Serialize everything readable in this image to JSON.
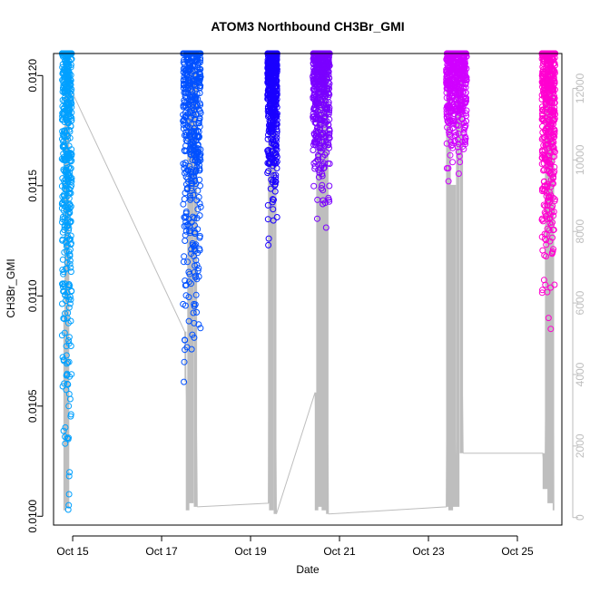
{
  "chart_data": {
    "type": "scatter",
    "title": "ATOM3 Northbound CH3Br_GMI",
    "xlabel": "Date",
    "ylabel": "CH3Br_GMI",
    "y_right_label": "",
    "xlim": [
      14.57,
      26.0
    ],
    "ylim": [
      0.00996,
      0.0121
    ],
    "y2lim": [
      -210,
      12975
    ],
    "x_ticks": [
      {
        "value": 15,
        "label": "Oct 15"
      },
      {
        "value": 17,
        "label": "Oct 17"
      },
      {
        "value": 19,
        "label": "Oct 19"
      },
      {
        "value": 21,
        "label": "Oct 21"
      },
      {
        "value": 23,
        "label": "Oct 23"
      },
      {
        "value": 25,
        "label": "Oct 25"
      }
    ],
    "y_ticks": [
      {
        "value": 0.01,
        "label": "0.0100"
      },
      {
        "value": 0.0105,
        "label": "0.0105"
      },
      {
        "value": 0.011,
        "label": "0.0110"
      },
      {
        "value": 0.0115,
        "label": "0.0115"
      },
      {
        "value": 0.012,
        "label": "0.0120"
      }
    ],
    "y2_ticks": [
      {
        "value": 0,
        "label": "0"
      },
      {
        "value": 2000,
        "label": "2000"
      },
      {
        "value": 4000,
        "label": "4000"
      },
      {
        "value": 6000,
        "label": "6000"
      },
      {
        "value": 8000,
        "label": "8000"
      },
      {
        "value": 10000,
        "label": "10000"
      },
      {
        "value": 12000,
        "label": "12000"
      }
    ],
    "altitude_line": {
      "axis": "right",
      "color": "#bebebe",
      "points": [
        [
          14.8,
          5800
        ],
        [
          14.82,
          200
        ],
        [
          14.85,
          12600
        ],
        [
          14.88,
          300
        ],
        [
          14.92,
          12400
        ],
        [
          14.95,
          12000
        ],
        [
          17.52,
          5200
        ],
        [
          17.55,
          3800
        ],
        [
          17.58,
          200
        ],
        [
          17.62,
          12600
        ],
        [
          17.65,
          400
        ],
        [
          17.72,
          12500
        ],
        [
          17.8,
          300
        ],
        [
          19.4,
          400
        ],
        [
          19.42,
          12400
        ],
        [
          19.45,
          200
        ],
        [
          19.52,
          12300
        ],
        [
          19.58,
          100
        ],
        [
          20.45,
          3500
        ],
        [
          20.48,
          200
        ],
        [
          20.52,
          12600
        ],
        [
          20.55,
          300
        ],
        [
          20.6,
          12500
        ],
        [
          20.65,
          200
        ],
        [
          20.7,
          12600
        ],
        [
          20.75,
          100
        ],
        [
          23.4,
          300
        ],
        [
          23.45,
          12600
        ],
        [
          23.5,
          200
        ],
        [
          23.55,
          9300
        ],
        [
          23.62,
          300
        ],
        [
          23.7,
          12600
        ],
        [
          23.78,
          1800
        ],
        [
          25.57,
          1800
        ],
        [
          25.62,
          800
        ],
        [
          25.68,
          12600
        ],
        [
          25.72,
          400
        ],
        [
          25.8,
          12600
        ],
        [
          25.82,
          200
        ]
      ]
    },
    "series": [
      {
        "color": "#00a0ff",
        "x_range": [
          14.76,
          14.98
        ],
        "y_range": [
          0.01002,
          0.0121
        ],
        "tail": [
          [
            14.9,
            0.01003
          ],
          [
            14.91,
            0.01005
          ],
          [
            14.92,
            0.0101
          ],
          [
            14.93,
            0.0102
          ],
          [
            14.9,
            0.01035
          ],
          [
            14.91,
            0.0105
          ],
          [
            14.92,
            0.0107
          ]
        ]
      },
      {
        "color": "#0050ff",
        "x_range": [
          17.48,
          17.88
        ],
        "y_range": [
          0.0106,
          0.0121
        ],
        "tail": [
          [
            17.5,
            0.01061
          ],
          [
            17.51,
            0.0107
          ],
          [
            17.52,
            0.0108
          ]
        ]
      },
      {
        "color": "#1a00ff",
        "x_range": [
          19.38,
          19.6
        ],
        "y_range": [
          0.01123,
          0.0121
        ],
        "tail": [
          [
            19.4,
            0.01123
          ],
          [
            19.41,
            0.01126
          ]
        ]
      },
      {
        "color": "#7a00ff",
        "x_range": [
          20.4,
          20.78
        ],
        "y_range": [
          0.01131,
          0.0121
        ],
        "tail": [
          [
            20.7,
            0.01131
          ],
          [
            20.5,
            0.01135
          ]
        ]
      },
      {
        "color": "#d000ff",
        "x_range": [
          23.4,
          23.86
        ],
        "y_range": [
          0.0115,
          0.0121
        ],
        "tail": [
          [
            23.45,
            0.01152
          ]
        ]
      },
      {
        "color": "#ff00d0",
        "x_range": [
          25.55,
          25.85
        ],
        "y_range": [
          0.01085,
          0.0121
        ],
        "tail": [
          [
            25.75,
            0.01085
          ],
          [
            25.7,
            0.0109
          ]
        ]
      }
    ]
  }
}
